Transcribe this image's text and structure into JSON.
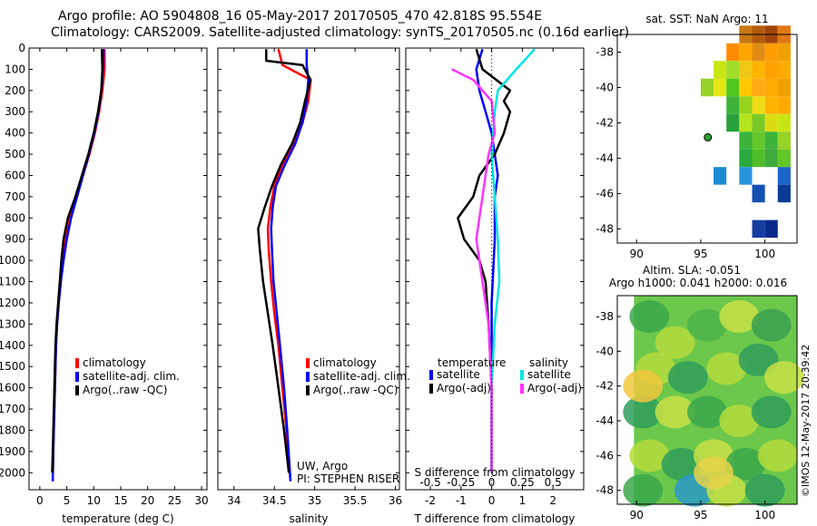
{
  "header": {
    "line1": "Argo profile: AO 5904808_16 05-May-2017 20170505_470 42.818S 95.554E",
    "line2": "Climatology: CARS2009. Satellite-adjusted climatology: synTS_20170505.nc (0.16d earlier)"
  },
  "colors": {
    "climatology": "#ff0000",
    "satellite": "#0000ff",
    "argo": "#000000",
    "salinity_satellite": "#00e5e5",
    "salinity_argo": "#ff33ff"
  },
  "chart_data": [
    {
      "type": "line",
      "id": "temperature",
      "xlabel": "temperature (deg C)",
      "ylabel": "",
      "xlim": [
        -2,
        31
      ],
      "ylim": [
        2080,
        0
      ],
      "xticks": [
        0,
        5,
        10,
        15,
        20,
        25,
        30
      ],
      "yticks": [
        0,
        100,
        200,
        300,
        400,
        500,
        600,
        700,
        800,
        900,
        1000,
        1100,
        1200,
        1300,
        1400,
        1500,
        1600,
        1700,
        1800,
        1900,
        2000
      ],
      "legend": [
        "climatology",
        "satellite-adj. clim.",
        "Argo(..raw -QC)"
      ],
      "legend_position": "lower-right",
      "series": [
        {
          "name": "climatology",
          "color": "#ff0000",
          "points": [
            [
              12.0,
              5
            ],
            [
              12.0,
              100
            ],
            [
              11.6,
              200
            ],
            [
              11.0,
              300
            ],
            [
              10.2,
              400
            ],
            [
              9.2,
              500
            ],
            [
              8.0,
              600
            ],
            [
              6.8,
              700
            ],
            [
              5.6,
              800
            ],
            [
              4.8,
              900
            ],
            [
              4.3,
              1000
            ],
            [
              3.9,
              1100
            ],
            [
              3.5,
              1200
            ],
            [
              3.2,
              1300
            ],
            [
              3.0,
              1400
            ],
            [
              2.9,
              1500
            ],
            [
              2.8,
              1600
            ],
            [
              2.7,
              1700
            ],
            [
              2.6,
              1800
            ],
            [
              2.5,
              1900
            ],
            [
              2.4,
              2040
            ]
          ]
        },
        {
          "name": "satellite-adj. clim.",
          "color": "#0000ff",
          "points": [
            [
              11.8,
              5
            ],
            [
              11.7,
              100
            ],
            [
              11.4,
              200
            ],
            [
              10.9,
              300
            ],
            [
              10.1,
              400
            ],
            [
              9.1,
              500
            ],
            [
              8.0,
              600
            ],
            [
              6.9,
              700
            ],
            [
              5.8,
              800
            ],
            [
              5.0,
              900
            ],
            [
              4.4,
              1000
            ],
            [
              3.9,
              1100
            ],
            [
              3.5,
              1200
            ],
            [
              3.2,
              1300
            ],
            [
              3.0,
              1400
            ],
            [
              2.9,
              1500
            ],
            [
              2.8,
              1600
            ],
            [
              2.7,
              1700
            ],
            [
              2.6,
              1800
            ],
            [
              2.5,
              1900
            ],
            [
              2.4,
              2040
            ]
          ]
        },
        {
          "name": "Argo(..raw -QC)",
          "color": "#000000",
          "points": [
            [
              11.5,
              5
            ],
            [
              11.6,
              100
            ],
            [
              11.4,
              200
            ],
            [
              10.8,
              300
            ],
            [
              10.0,
              400
            ],
            [
              9.0,
              500
            ],
            [
              7.8,
              600
            ],
            [
              6.6,
              700
            ],
            [
              5.2,
              800
            ],
            [
              4.4,
              900
            ],
            [
              4.0,
              1000
            ],
            [
              3.7,
              1100
            ],
            [
              3.4,
              1200
            ],
            [
              3.1,
              1300
            ],
            [
              2.9,
              1400
            ],
            [
              2.8,
              1500
            ],
            [
              2.7,
              1600
            ],
            [
              2.6,
              1700
            ],
            [
              2.5,
              1800
            ],
            [
              2.4,
              1900
            ],
            [
              2.3,
              2000
            ]
          ]
        }
      ]
    },
    {
      "type": "line",
      "id": "salinity",
      "xlabel": "salinity",
      "ylabel": "",
      "xlim": [
        33.8,
        36.05
      ],
      "ylim": [
        2080,
        0
      ],
      "xticks": [
        34,
        34.5,
        35,
        35.5,
        36
      ],
      "xticklabels": [
        "34",
        "34.5",
        "35",
        "35.5",
        "36"
      ],
      "legend": [
        "climatology",
        "satellite-adj. clim.",
        "Argo(..raw -QC)"
      ],
      "legend_position": "lower-right",
      "annotation": [
        "UW, Argo",
        "PI: STEPHEN RISER"
      ],
      "series": [
        {
          "name": "climatology",
          "color": "#ff0000",
          "points": [
            [
              34.55,
              5
            ],
            [
              34.6,
              80
            ],
            [
              34.95,
              150
            ],
            [
              34.92,
              250
            ],
            [
              34.85,
              350
            ],
            [
              34.75,
              450
            ],
            [
              34.6,
              550
            ],
            [
              34.5,
              650
            ],
            [
              34.45,
              750
            ],
            [
              34.42,
              850
            ],
            [
              34.43,
              950
            ],
            [
              34.46,
              1100
            ],
            [
              34.5,
              1250
            ],
            [
              34.55,
              1400
            ],
            [
              34.6,
              1600
            ],
            [
              34.65,
              1800
            ],
            [
              34.7,
              2040
            ]
          ]
        },
        {
          "name": "satellite-adj. clim.",
          "color": "#0000ff",
          "points": [
            [
              34.9,
              5
            ],
            [
              34.9,
              80
            ],
            [
              34.92,
              150
            ],
            [
              34.9,
              250
            ],
            [
              34.85,
              350
            ],
            [
              34.76,
              450
            ],
            [
              34.63,
              550
            ],
            [
              34.52,
              650
            ],
            [
              34.48,
              750
            ],
            [
              34.46,
              850
            ],
            [
              34.47,
              950
            ],
            [
              34.49,
              1100
            ],
            [
              34.53,
              1250
            ],
            [
              34.57,
              1400
            ],
            [
              34.62,
              1600
            ],
            [
              34.66,
              1800
            ],
            [
              34.7,
              2040
            ]
          ]
        },
        {
          "name": "Argo(..raw -QC)",
          "color": "#000000",
          "points": [
            [
              34.4,
              5
            ],
            [
              34.4,
              60
            ],
            [
              34.85,
              80
            ],
            [
              34.95,
              150
            ],
            [
              34.88,
              250
            ],
            [
              34.82,
              350
            ],
            [
              34.72,
              450
            ],
            [
              34.58,
              550
            ],
            [
              34.47,
              650
            ],
            [
              34.38,
              750
            ],
            [
              34.3,
              850
            ],
            [
              34.32,
              950
            ],
            [
              34.36,
              1100
            ],
            [
              34.42,
              1250
            ],
            [
              34.48,
              1400
            ],
            [
              34.55,
              1600
            ],
            [
              34.62,
              1800
            ],
            [
              34.68,
              2000
            ]
          ]
        }
      ]
    },
    {
      "type": "line",
      "id": "differences",
      "xlabel": "T difference from climatology",
      "top_xlabel": "S difference from climatology",
      "xlim": [
        -2.8,
        3.0
      ],
      "ylim": [
        2080,
        0
      ],
      "xticks": [
        -2,
        -1,
        0,
        1,
        2
      ],
      "top_xticks": [
        -0.5,
        -0.25,
        0,
        0.25,
        0.5
      ],
      "top_xticklabels": [
        "-0.5",
        "-0.25",
        "0",
        "0.25",
        "0.5"
      ],
      "legend_left_title": "temperature",
      "legend_right_title": "salinity",
      "legend_left": [
        "satellite",
        "Argo(-adj)"
      ],
      "legend_right": [
        "satellite",
        "Argo(-adj)"
      ],
      "series": [
        {
          "name": "T satellite",
          "color": "#0000ff",
          "points": [
            [
              -0.3,
              5
            ],
            [
              -0.5,
              100
            ],
            [
              -0.4,
              200
            ],
            [
              -0.2,
              300
            ],
            [
              0.0,
              400
            ],
            [
              0.1,
              500
            ],
            [
              0.2,
              600
            ],
            [
              0.1,
              700
            ],
            [
              0.1,
              900
            ],
            [
              0.0,
              1200
            ],
            [
              0.0,
              1600
            ],
            [
              0.0,
              2000
            ]
          ]
        },
        {
          "name": "T Argo(-adj)",
          "color": "#000000",
          "points": [
            [
              -0.5,
              5
            ],
            [
              -0.3,
              100
            ],
            [
              0.6,
              200
            ],
            [
              0.4,
              250
            ],
            [
              0.6,
              300
            ],
            [
              0.4,
              400
            ],
            [
              0.1,
              500
            ],
            [
              -0.4,
              600
            ],
            [
              -0.6,
              700
            ],
            [
              -1.1,
              800
            ],
            [
              -0.9,
              900
            ],
            [
              -0.4,
              1000
            ],
            [
              -0.2,
              1100
            ],
            [
              -0.1,
              1300
            ],
            [
              0.0,
              1600
            ],
            [
              0.0,
              2000
            ]
          ]
        },
        {
          "name": "S satellite",
          "color": "#00e5e5",
          "points": [
            [
              1.4,
              5
            ],
            [
              0.8,
              100
            ],
            [
              0.2,
              200
            ],
            [
              0.1,
              300
            ],
            [
              0.0,
              500
            ],
            [
              0.1,
              700
            ],
            [
              0.2,
              900
            ],
            [
              0.25,
              1100
            ],
            [
              0.1,
              1300
            ],
            [
              0.0,
              1600
            ],
            [
              0.0,
              2000
            ]
          ]
        },
        {
          "name": "S Argo(-adj)",
          "color": "#ff33ff",
          "points": [
            [
              -1.3,
              100
            ],
            [
              -0.6,
              150
            ],
            [
              0.0,
              250
            ],
            [
              0.1,
              400
            ],
            [
              -0.1,
              500
            ],
            [
              -0.3,
              700
            ],
            [
              -0.5,
              900
            ],
            [
              -0.3,
              1100
            ],
            [
              -0.1,
              1300
            ],
            [
              0.0,
              1600
            ],
            [
              0.0,
              2000
            ]
          ]
        }
      ]
    }
  ],
  "sst_map": {
    "title": "sat. SST: NaN Argo: 11",
    "xticks": [
      90,
      95,
      100
    ],
    "yticks": [
      -38,
      -40,
      -42,
      -44,
      -46,
      -48
    ],
    "xticklabels": [
      "90",
      "95",
      "100"
    ],
    "yticklabels": [
      "-38",
      "-40",
      "-42",
      "-44",
      "-46",
      "-48"
    ],
    "xlim": [
      88.5,
      102.5
    ],
    "ylim": [
      -48.8,
      -37
    ]
  },
  "sla_map": {
    "title_line1": "Altim. SLA: -0.051",
    "title_line2": "Argo h1000: 0.041 h2000: 0.016",
    "xticks": [
      90,
      95,
      100
    ],
    "yticks": [
      -38,
      -40,
      -42,
      -44,
      -46,
      -48
    ],
    "xticklabels": [
      "90",
      "95",
      "100"
    ],
    "yticklabels": [
      "-38",
      "-40",
      "-42",
      "-44",
      "-46",
      "-48"
    ],
    "xlim": [
      88.5,
      102.5
    ],
    "ylim": [
      -48.8,
      -36.8
    ]
  },
  "argo_position": {
    "lon": 95.554,
    "lat": -42.818
  },
  "stamp": "©IMOS 12-May-2017 20:39:42"
}
